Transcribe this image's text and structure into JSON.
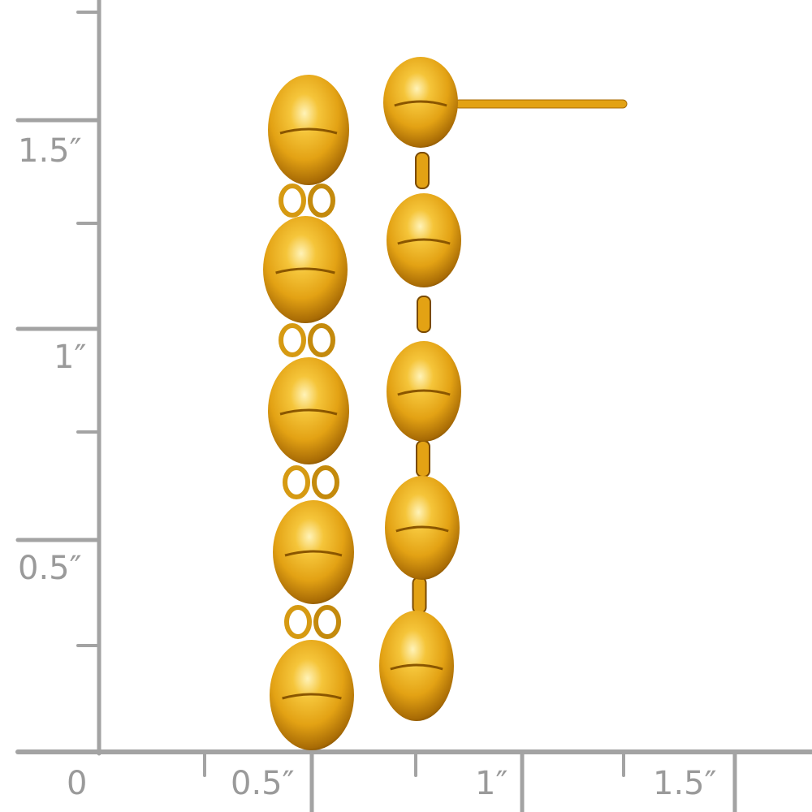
{
  "ruler": {
    "color": "#a3a3a3",
    "vertical_labels": [
      "1.5″",
      "1″",
      "0.5″"
    ],
    "horizontal_labels": [
      "0",
      "0.5″",
      "1″",
      "1.5″"
    ]
  },
  "product": {
    "subject": "gold bead drop earrings",
    "gold_color": "#e8a91a",
    "left_earring_beads": 5,
    "right_earring_beads": 5
  }
}
